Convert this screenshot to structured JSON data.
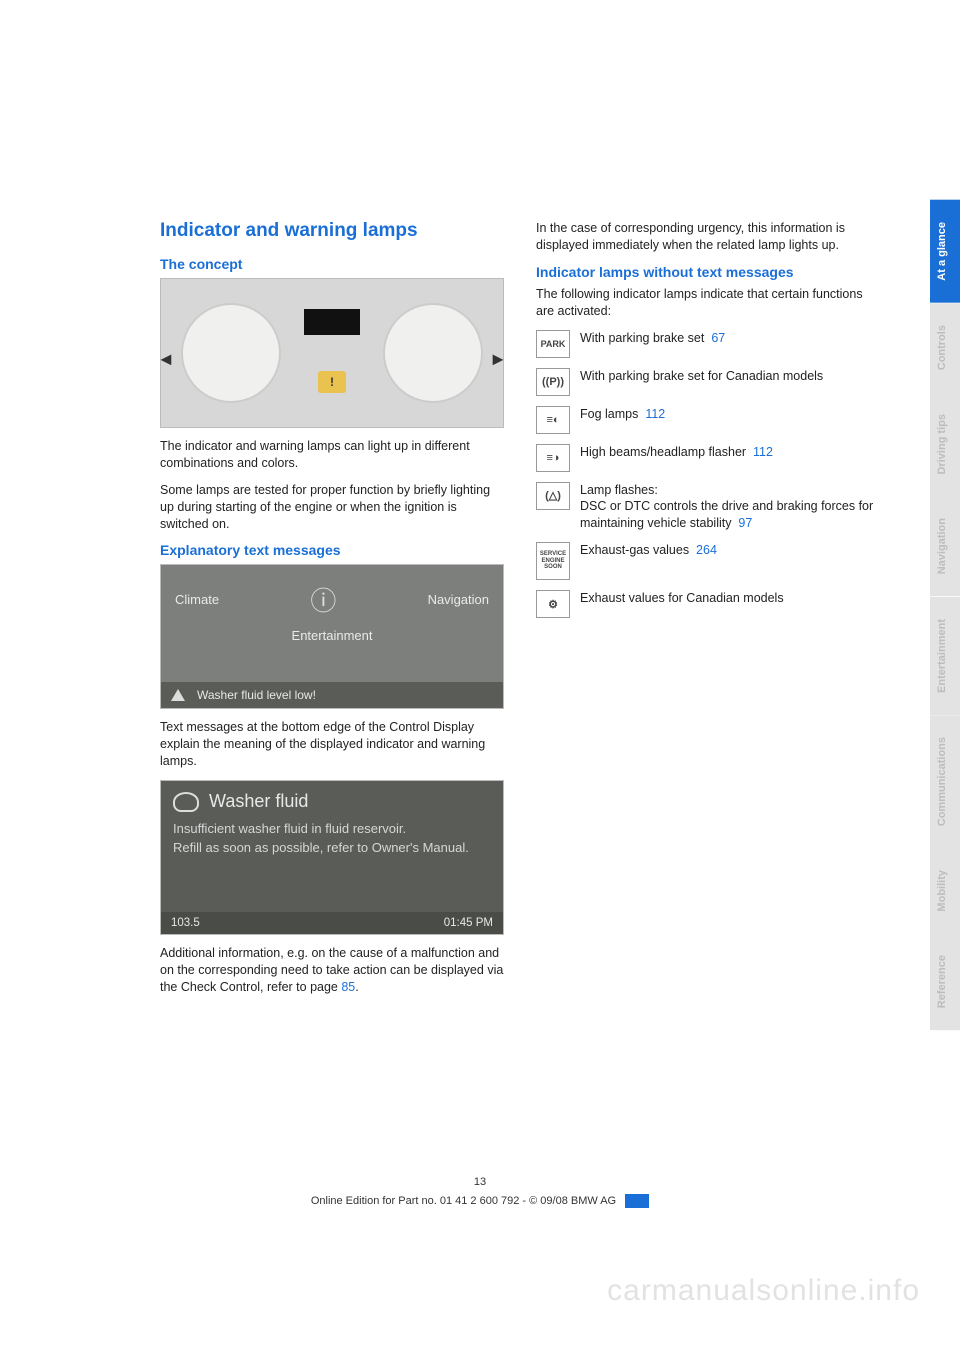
{
  "section": {
    "title": "Indicator and warning lamps",
    "concept": {
      "heading": "The concept",
      "p1": "The indicator and warning lamps can light up in different combinations and colors.",
      "p2": "Some lamps are tested for proper function by briefly lighting up during starting of the engine or when the ignition is switched on."
    },
    "explanatory": {
      "heading": "Explanatory text messages",
      "p1": "Text messages at the bottom edge of the Control Display explain the meaning of the displayed indicator and warning lamps.",
      "p2_a": "Additional information, e.g. on the cause of a malfunction and on the corresponding need to take action can be displayed via the Check Control, refer to page ",
      "p2_ref": "85",
      "p2_b": "."
    }
  },
  "fig2": {
    "left": "Climate",
    "center": "ⓘ",
    "right": "Navigation",
    "bottom": "Entertainment",
    "status": "Washer fluid level low!"
  },
  "fig3": {
    "title": "Washer fluid",
    "line1": "Insufficient washer fluid in fluid reservoir.",
    "line2": "Refill as soon as possible, refer to Owner's Manual.",
    "bar_left": "103.5",
    "bar_right": "01:45 PM"
  },
  "right": {
    "intro": "In the case of corresponding urgency, this information is displayed immediately when the related lamp lights up.",
    "heading": "Indicator lamps without text messages",
    "intro2": "The following indicator lamps indicate that certain functions are activated:",
    "rows": [
      {
        "icon": "PARK",
        "text_a": "With parking brake set",
        "ref": "67"
      },
      {
        "icon": "((P))",
        "text_a": "With parking brake set for Canadian models",
        "ref": ""
      },
      {
        "icon": "≡◐",
        "text_a": "Fog lamps",
        "ref": "112"
      },
      {
        "icon": "≡◑",
        "text_a": "High beams/headlamp flasher",
        "ref": "112"
      },
      {
        "icon": "(△)",
        "text_a": "Lamp flashes:\nDSC or DTC controls the drive and braking forces for maintaining vehicle stability",
        "ref": "97"
      },
      {
        "icon": "SERVICE\nENGINE\nSOON",
        "text_a": "Exhaust-gas values",
        "ref": "264"
      },
      {
        "icon": "⚙",
        "text_a": "Exhaust values for Canadian models",
        "ref": ""
      }
    ]
  },
  "tabs": [
    "At a glance",
    "Controls",
    "Driving tips",
    "Navigation",
    "Entertainment",
    "Communications",
    "Mobility",
    "Reference"
  ],
  "footer": {
    "page": "13",
    "line": "Online Edition for Part no. 01 41 2 600 792 - © 09/08 BMW AG"
  },
  "watermark": "carmanualsonline.info",
  "colors": {
    "accent": "#1a6fd6",
    "tab_inactive_bg": "#e3e3e3",
    "tab_inactive_fg": "#bdbdbd"
  }
}
